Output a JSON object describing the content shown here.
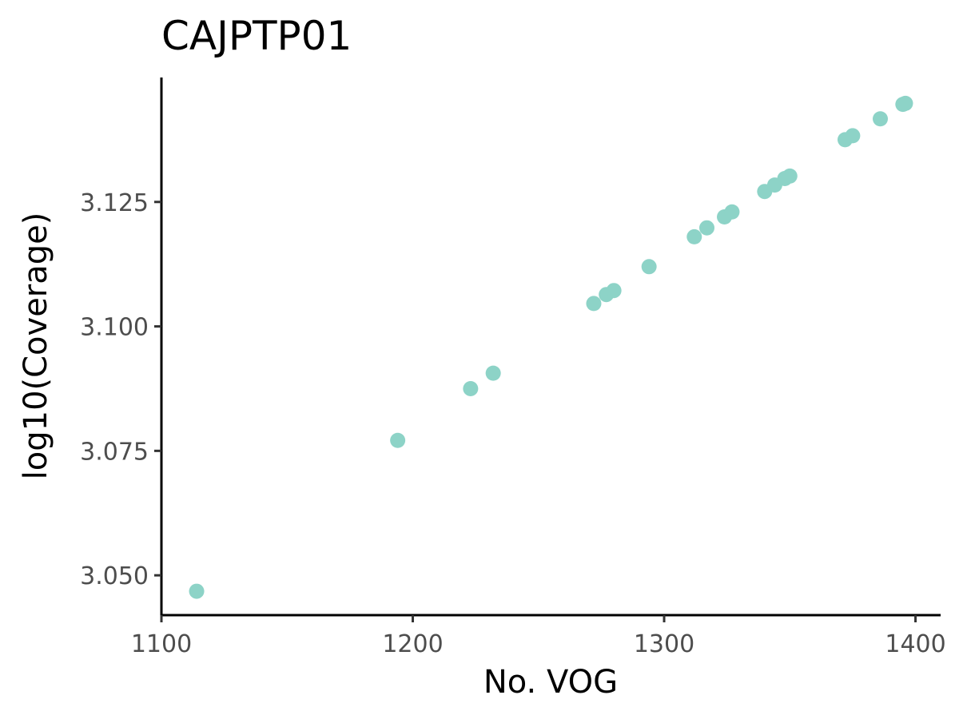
{
  "chart_data": {
    "type": "scatter",
    "title": "CAJPTP01",
    "xlabel": "No. VOG",
    "ylabel": "log10(Coverage)",
    "xlim": [
      1100,
      1410
    ],
    "ylim": [
      3.042,
      3.15
    ],
    "xticks": [
      1100,
      1200,
      1300,
      1400
    ],
    "xtick_labels": [
      "1100",
      "1200",
      "1300",
      "1400"
    ],
    "yticks": [
      3.05,
      3.075,
      3.1,
      3.125
    ],
    "ytick_labels": [
      "3.050",
      "3.075",
      "3.100",
      "3.125"
    ],
    "grid": false,
    "legend": "none",
    "point_color": "#8dd3c7",
    "series": [
      {
        "points": [
          {
            "x": 1114,
            "y": 3.0468
          },
          {
            "x": 1194,
            "y": 3.0771
          },
          {
            "x": 1223,
            "y": 3.0875
          },
          {
            "x": 1232,
            "y": 3.0906
          },
          {
            "x": 1272,
            "y": 3.1046
          },
          {
            "x": 1277,
            "y": 3.1064
          },
          {
            "x": 1280,
            "y": 3.1072
          },
          {
            "x": 1294,
            "y": 3.112
          },
          {
            "x": 1312,
            "y": 3.118
          },
          {
            "x": 1317,
            "y": 3.1198
          },
          {
            "x": 1324,
            "y": 3.122
          },
          {
            "x": 1327,
            "y": 3.123
          },
          {
            "x": 1340,
            "y": 3.1271
          },
          {
            "x": 1344,
            "y": 3.1284
          },
          {
            "x": 1348,
            "y": 3.1297
          },
          {
            "x": 1350,
            "y": 3.1302
          },
          {
            "x": 1372,
            "y": 3.1375
          },
          {
            "x": 1375,
            "y": 3.1383
          },
          {
            "x": 1386,
            "y": 3.1417
          },
          {
            "x": 1395,
            "y": 3.1446
          },
          {
            "x": 1396,
            "y": 3.1448
          }
        ]
      }
    ]
  }
}
